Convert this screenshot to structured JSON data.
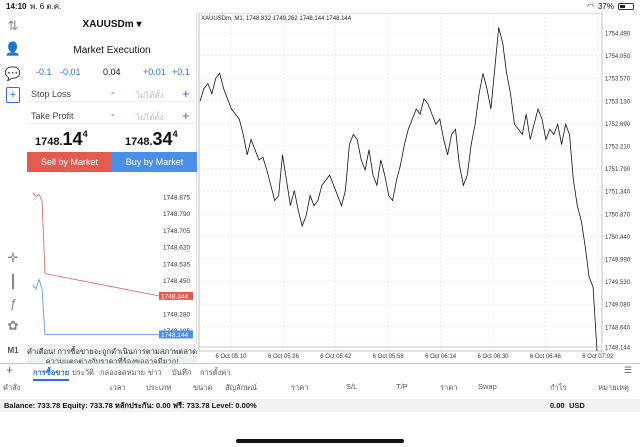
{
  "status_bar": {
    "time": "14:10",
    "date": "พ. 6 ต.ค.",
    "battery": "37%"
  },
  "panel": {
    "symbol": "XAUUSDm",
    "execution": "Market Execution",
    "vol_minus_big": "-0.1",
    "vol_minus_small": "-0.01",
    "volume": "0.04",
    "vol_plus_small": "+0.01",
    "vol_plus_big": "+0.1",
    "stop_loss_label": "Stop Loss",
    "take_profit_label": "Take Profit",
    "not_set": "ไม่ได้ตั้ง",
    "minus_sign": "-",
    "plus_sign": "+",
    "sell_price": {
      "main": "1748.",
      "big": "14",
      "sup": "4"
    },
    "buy_price": {
      "main": "1748.",
      "big": "34",
      "sup": "4"
    },
    "sell_label": "Sell by Market",
    "buy_label": "Buy by Market",
    "warning": "คำเตือน! การซื้อขายจะถูกดำเนินการตามสภาพตลาด ความแตกต่างกับราคาที่ร้องขออาจมีมาก!"
  },
  "mini_chart": {
    "type": "line",
    "y_ticks": [
      "1748.875",
      "1748.790",
      "1748.705",
      "1748.620",
      "1748.535",
      "1748.450",
      "1748.365",
      "1748.280",
      "1748.195"
    ],
    "ylim": [
      1748.11,
      1748.93
    ],
    "ask": {
      "label": "1748.344",
      "value": 1748.344,
      "color": "#e15c4f"
    },
    "bid": {
      "label": "1748.144",
      "value": 1748.144,
      "color": "#4a8fe6"
    },
    "ask_series": [
      1748.88,
      1748.86,
      1748.87,
      1748.84,
      1748.46,
      1748.344
    ],
    "bid_series": [
      1748.4,
      1748.38,
      1748.43,
      1748.38,
      1748.144,
      1748.144
    ]
  },
  "chart_data": {
    "type": "line",
    "title": "XAUUSDm, M1, 1748.832 1749.262 1748.144 1748.144",
    "x_ticks": [
      "6 Oct 05:10",
      "6 Oct 05:26",
      "6 Oct 05:42",
      "6 Oct 05:58",
      "6 Oct 06:14",
      "6 Oct 06:30",
      "6 Oct 06:46",
      "6 Oct 07:02"
    ],
    "y_ticks": [
      "1754.490",
      "1754.050",
      "1753.570",
      "1753.130",
      "1752.690",
      "1752.210",
      "1751.790",
      "1751.340",
      "1750.870",
      "1750.440",
      "1749.990",
      "1749.530",
      "1749.080",
      "1748.640"
    ],
    "ylim": [
      1748.144,
      1754.55
    ],
    "current_price_label": "1748.144",
    "grid": true,
    "close_prices": [
      1753.05,
      1753.3,
      1753.4,
      1753.2,
      1753.5,
      1753.6,
      1753.3,
      1753.1,
      1752.9,
      1752.8,
      1752.7,
      1752.4,
      1752.0,
      1752.3,
      1752.1,
      1751.9,
      1751.95,
      1751.7,
      1751.4,
      1751.1,
      1751.2,
      1752.0,
      1751.5,
      1751.0,
      1751.3,
      1750.9,
      1750.6,
      1750.8,
      1751.2,
      1751.0,
      1751.1,
      1751.4,
      1751.5,
      1751.6,
      1751.4,
      1751.2,
      1751.0,
      1751.3,
      1752.2,
      1752.4,
      1752.3,
      1751.9,
      1751.7,
      1752.1,
      1751.6,
      1751.4,
      1751.9,
      1751.6,
      1751.2,
      1751.1,
      1751.5,
      1751.8,
      1752.2,
      1752.5,
      1752.7,
      1752.9,
      1752.8,
      1753.1,
      1753.0,
      1752.8,
      1752.6,
      1752.7,
      1752.3,
      1752.0,
      1752.4,
      1752.5,
      1751.8,
      1751.4,
      1751.6,
      1752.2,
      1752.6,
      1753.2,
      1753.6,
      1753.3,
      1752.9,
      1753.7,
      1754.5,
      1754.2,
      1753.6,
      1753.2,
      1752.6,
      1752.5,
      1752.4,
      1752.8,
      1752.3,
      1752.6,
      1752.9,
      1752.7,
      1752.3,
      1752.5,
      1752.4,
      1752.6,
      1752.2,
      1752.6,
      1752.4,
      1751.5,
      1751.0,
      1750.7,
      1750.2,
      1749.6,
      1749.4,
      1748.144
    ]
  },
  "bottom": {
    "tabs": [
      "การซื้อขาย",
      "ประวัติ",
      "กล่องจดหมาย",
      "ข่าว",
      "บันทึก",
      "การตั้งค่า"
    ],
    "columns": [
      "คำสั่ง",
      "เวลา",
      "ประเภท",
      "ขนาด",
      "สัญลักษณ์",
      "ราคา",
      "S/L",
      "T/P",
      "ราคา",
      "Swap",
      "กำไร",
      "หมายเหตุ"
    ],
    "balance_text": "Balance: 733.78 Equity: 733.78 หลักประกัน: 0.00 ฟรี: 733.78 Level: 0.00%",
    "profit": "0.00",
    "currency": "USD"
  },
  "colors": {
    "accent": "#2a6fdb",
    "sell": "#e15c4f",
    "buy": "#4a8fe6"
  }
}
